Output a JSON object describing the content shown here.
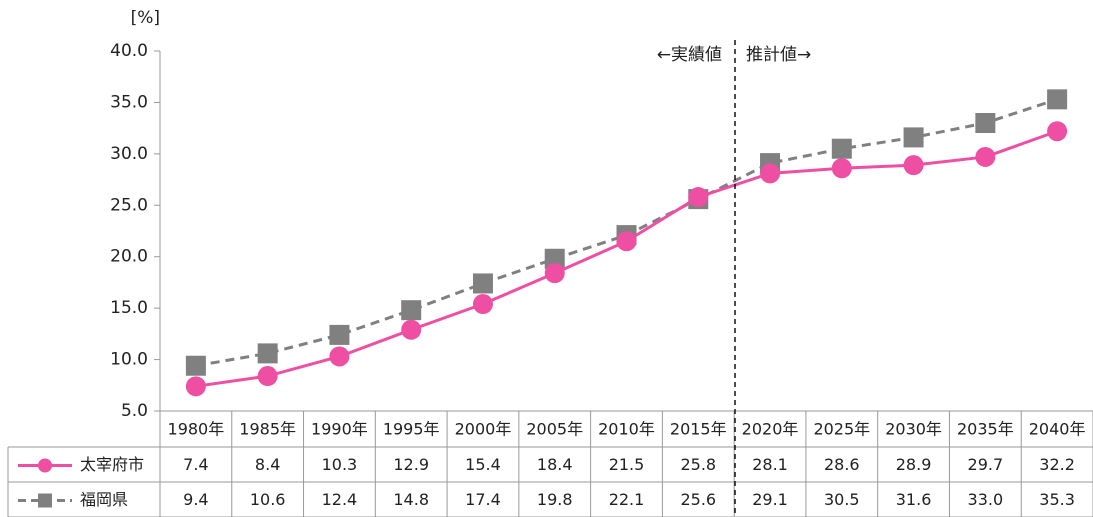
{
  "chart_data": {
    "type": "line",
    "unit_label": "[%]",
    "annotations": [
      "←実績値",
      "推計値→"
    ],
    "categories": [
      "1980年",
      "1985年",
      "1990年",
      "1995年",
      "2000年",
      "2005年",
      "2010年",
      "2015年",
      "2020年",
      "2025年",
      "2030年",
      "2035年",
      "2040年"
    ],
    "series": [
      {
        "name": "太宰府市",
        "color": "#ee4fa3",
        "line_style": "solid",
        "marker": "circle",
        "values": [
          7.4,
          8.4,
          10.3,
          12.9,
          15.4,
          18.4,
          21.5,
          25.8,
          28.1,
          28.6,
          28.9,
          29.7,
          32.2
        ],
        "value_labels": [
          "7.4",
          "8.4",
          "10.3",
          "12.9",
          "15.4",
          "18.4",
          "21.5",
          "25.8",
          "28.1",
          "28.6",
          "28.9",
          "29.7",
          "32.2"
        ]
      },
      {
        "name": "福岡県",
        "color": "#808080",
        "line_style": "dashed",
        "marker": "square",
        "values": [
          9.4,
          10.6,
          12.4,
          14.8,
          17.4,
          19.8,
          22.1,
          25.6,
          29.1,
          30.5,
          31.6,
          33.0,
          35.3
        ],
        "value_labels": [
          "9.4",
          "10.6",
          "12.4",
          "14.8",
          "17.4",
          "19.8",
          "22.1",
          "25.6",
          "29.1",
          "30.5",
          "31.6",
          "33.0",
          "35.3"
        ]
      }
    ],
    "ylim": [
      5,
      40
    ],
    "yticks": [
      {
        "value": 5,
        "label": "5.0"
      },
      {
        "value": 10,
        "label": "10.0"
      },
      {
        "value": 15,
        "label": "15.0"
      },
      {
        "value": 20,
        "label": "20.0"
      },
      {
        "value": 25,
        "label": "25.0"
      },
      {
        "value": 30,
        "label": "30.0"
      },
      {
        "value": 35,
        "label": "35.0"
      },
      {
        "value": 40,
        "label": "40.0"
      }
    ],
    "grid": false
  }
}
